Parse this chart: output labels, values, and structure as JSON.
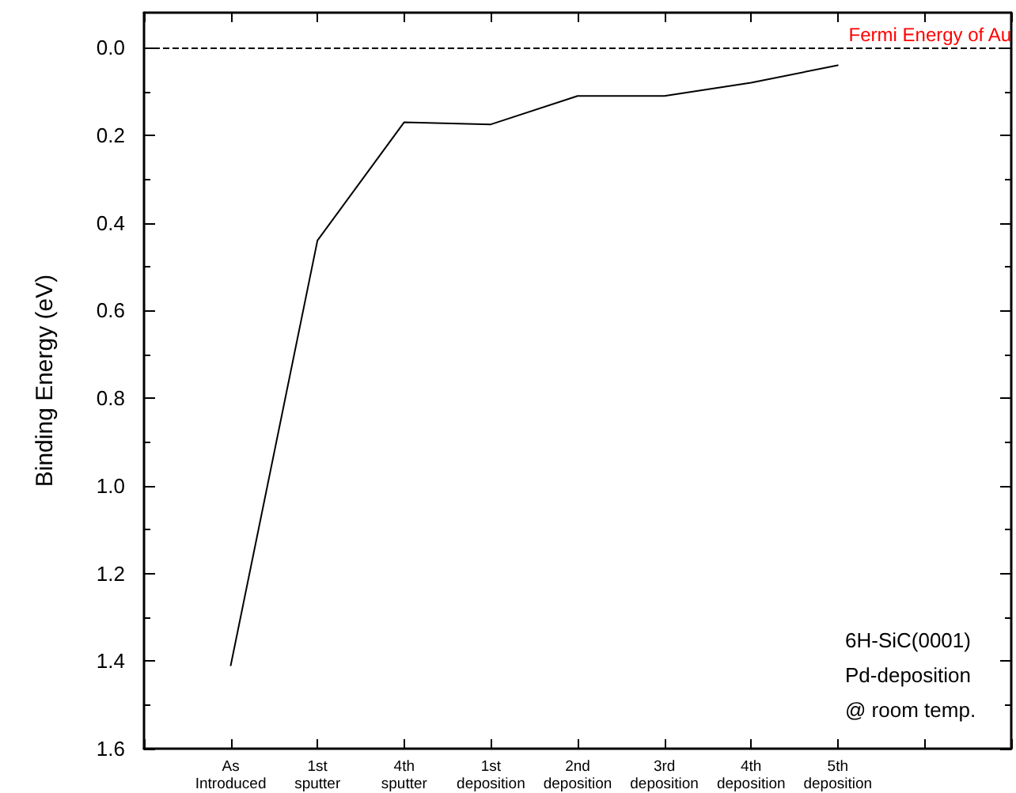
{
  "chart_data": {
    "type": "line",
    "ylabel": "Binding Energy (eV)",
    "categories": [
      null,
      "As Introduced",
      "1st sputter",
      "4th sputter",
      "1st deposition",
      "2nd deposition",
      "3rd deposition",
      "4th deposition",
      "5th deposition",
      null,
      null
    ],
    "series": [
      {
        "color": "#000000",
        "values": [
          null,
          1.41,
          0.44,
          0.17,
          0.175,
          0.11,
          0.11,
          0.08,
          0.04,
          null,
          null
        ]
      }
    ],
    "ylim": [
      1.6,
      -0.08
    ],
    "yticks": [
      {
        "value": 0,
        "label": "0.0"
      },
      0.2,
      0.4,
      0.6,
      0.8,
      {
        "value": 1,
        "label": "1.0"
      },
      1.2,
      1.4,
      1.6
    ],
    "ref_lines": [
      {
        "axis": "y",
        "value": 0,
        "label": "Fermi Energy of Au",
        "line_style": "dashed"
      }
    ],
    "annotations": [
      "6H-SiC(0001)",
      "Pd-deposition",
      "@ room temp."
    ],
    "grid": false,
    "marker": "none",
    "line_style": "solid"
  }
}
